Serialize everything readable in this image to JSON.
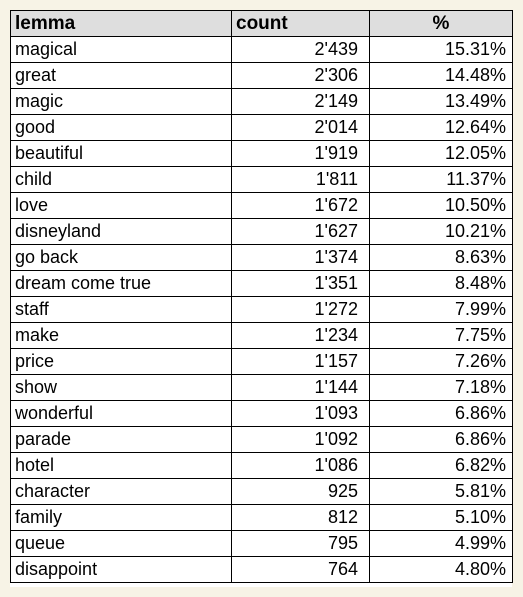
{
  "table": {
    "headers": {
      "lemma": "lemma",
      "count": "count",
      "percent": "%"
    },
    "rows": [
      {
        "lemma": "magical",
        "count": "2'439",
        "percent": "15.31%"
      },
      {
        "lemma": "great",
        "count": "2'306",
        "percent": "14.48%"
      },
      {
        "lemma": "magic",
        "count": "2'149",
        "percent": "13.49%"
      },
      {
        "lemma": "good",
        "count": "2'014",
        "percent": "12.64%"
      },
      {
        "lemma": "beautiful",
        "count": "1'919",
        "percent": "12.05%"
      },
      {
        "lemma": "child",
        "count": "1'811",
        "percent": "11.37%"
      },
      {
        "lemma": "love",
        "count": "1'672",
        "percent": "10.50%"
      },
      {
        "lemma": "disneyland",
        "count": "1'627",
        "percent": "10.21%"
      },
      {
        "lemma": "go back",
        "count": "1'374",
        "percent": "8.63%"
      },
      {
        "lemma": "dream come true",
        "count": "1'351",
        "percent": "8.48%"
      },
      {
        "lemma": "staff",
        "count": "1'272",
        "percent": "7.99%"
      },
      {
        "lemma": "make",
        "count": "1'234",
        "percent": "7.75%"
      },
      {
        "lemma": "price",
        "count": "1'157",
        "percent": "7.26%"
      },
      {
        "lemma": "show",
        "count": "1'144",
        "percent": "7.18%"
      },
      {
        "lemma": "wonderful",
        "count": "1'093",
        "percent": "6.86%"
      },
      {
        "lemma": "parade",
        "count": "1'092",
        "percent": "6.86%"
      },
      {
        "lemma": "hotel",
        "count": "1'086",
        "percent": "6.82%"
      },
      {
        "lemma": "character",
        "count": "925",
        "percent": "5.81%"
      },
      {
        "lemma": "family",
        "count": "812",
        "percent": "5.10%"
      },
      {
        "lemma": "queue",
        "count": "795",
        "percent": "4.99%"
      },
      {
        "lemma": "disappoint",
        "count": "764",
        "percent": "4.80%"
      }
    ]
  },
  "colors": {
    "page_background": "#f7f3e6",
    "header_background": "#dedede",
    "border": "#000000"
  }
}
